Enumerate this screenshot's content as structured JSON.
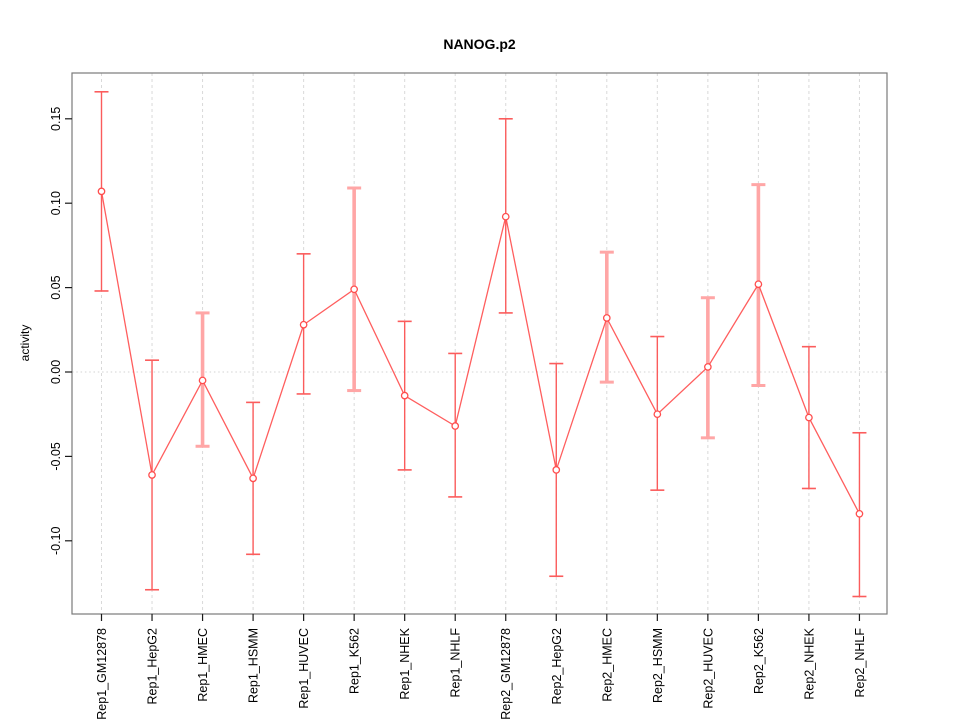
{
  "figure": {
    "title": "NANOG.p2"
  },
  "chart_data": {
    "type": "line",
    "title": "NANOG.p2",
    "xlabel": "",
    "ylabel": "activity",
    "categories": [
      "Rep1_GM12878",
      "Rep1_HepG2",
      "Rep1_HMEC",
      "Rep1_HSMM",
      "Rep1_HUVEC",
      "Rep1_K562",
      "Rep1_NHEK",
      "Rep1_NHLF",
      "Rep2_GM12878",
      "Rep2_HepG2",
      "Rep2_HMEC",
      "Rep2_HSMM",
      "Rep2_HUVEC",
      "Rep2_K562",
      "Rep2_NHEK",
      "Rep2_NHLF"
    ],
    "series": [
      {
        "name": "activity",
        "values": [
          0.107,
          -0.061,
          -0.005,
          -0.063,
          0.028,
          0.049,
          -0.014,
          -0.032,
          0.092,
          -0.058,
          0.032,
          -0.025,
          0.003,
          0.052,
          -0.027,
          -0.084
        ],
        "err_lo": [
          0.048,
          -0.129,
          -0.044,
          -0.108,
          -0.013,
          -0.011,
          -0.058,
          -0.074,
          0.035,
          -0.121,
          -0.006,
          -0.07,
          -0.039,
          -0.008,
          -0.069,
          -0.133
        ],
        "err_hi": [
          0.166,
          0.007,
          0.035,
          -0.018,
          0.07,
          0.109,
          0.03,
          0.011,
          0.15,
          0.005,
          0.071,
          0.021,
          0.044,
          0.111,
          0.015,
          -0.036
        ]
      }
    ],
    "y_ticks": [
      0.15,
      0.1,
      0.05,
      0.0,
      -0.05,
      -0.1
    ],
    "y_tick_labels": [
      "0.15",
      "0.10",
      "0.05",
      "0.00",
      "-0.05",
      "-0.10"
    ],
    "ylim": [
      -0.145,
      0.177
    ],
    "marker": "open-circle",
    "legend": "none",
    "grid": "vertical dashed line at each category; dotted horizontal line at zero",
    "wide_error_bars": [
      "Rep1_HMEC",
      "Rep1_K562",
      "Rep2_HMEC",
      "Rep2_HUVEC",
      "Rep2_K562"
    ],
    "colors": {
      "series": "#ff4d4d",
      "error_bar": "#fb5c5c",
      "error_bar_wide": "#ffa6a6",
      "grid": "#d9d9d9",
      "zero_line": "#dcdcdc",
      "frame": "#7a7a7a",
      "tick": "#1a1a1a",
      "text": "#000000"
    }
  }
}
